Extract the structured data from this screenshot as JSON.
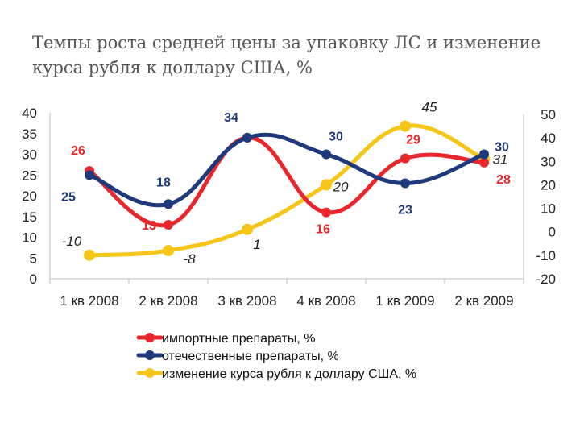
{
  "title": {
    "line1": "Темпы роста средней цены за упаковку ЛС и изменение",
    "line2": "курса рубля к доллару США, %"
  },
  "chart_data": {
    "type": "line",
    "categories": [
      "1 кв 2008",
      "2 кв 2008",
      "3 кв 2008",
      "4 кв 2008",
      "1 кв 2009",
      "2 кв 2009"
    ],
    "y_left": {
      "ticks": [
        "40",
        "35",
        "30",
        "25",
        "20",
        "15",
        "10",
        "5",
        "0"
      ],
      "ylim": [
        0,
        40
      ]
    },
    "y_right": {
      "ticks": [
        "50",
        "40",
        "30",
        "20",
        "10",
        "0",
        "-10",
        "-20"
      ],
      "ylim": [
        -20,
        50
      ]
    },
    "series": [
      {
        "name": "импортные препараты, %",
        "color": "#e8262b",
        "axis": "left",
        "values": [
          26,
          13,
          34,
          16,
          29,
          28
        ],
        "labels": [
          "26",
          "13",
          "",
          "16",
          "29",
          "28"
        ]
      },
      {
        "name": "отечественные препараты, %",
        "color": "#1f3a7a",
        "axis": "left",
        "values": [
          25,
          18,
          34,
          30,
          23,
          30
        ],
        "labels": [
          "25",
          "18",
          "34",
          "30",
          "23",
          "30"
        ]
      },
      {
        "name": "изменение курса рубля к доллару США, %",
        "color": "#f5c518",
        "axis": "right",
        "values": [
          -10,
          -8,
          1,
          20,
          45,
          31
        ],
        "labels": [
          "-10",
          "-8",
          "1",
          "20",
          "45",
          "31"
        ]
      }
    ],
    "grid": false,
    "legend": "bottom"
  }
}
